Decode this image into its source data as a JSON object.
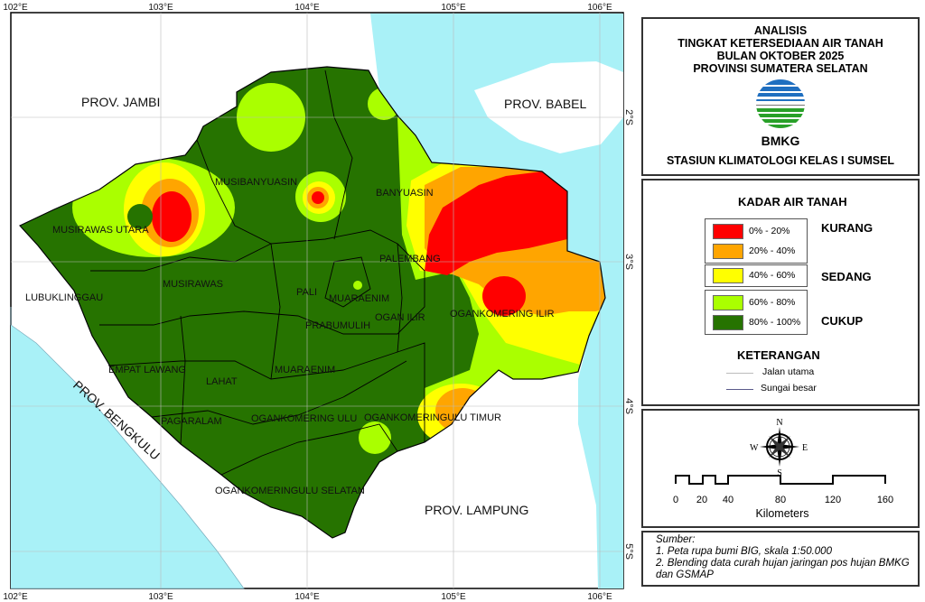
{
  "title": {
    "lines": [
      "ANALISIS",
      "TINGKAT KETERSEDIAAN AIR TANAH",
      "BULAN OKTOBER 2025",
      "PROVINSI SUMATERA SELATAN"
    ],
    "logo_text": "BMKG",
    "station": "STASIUN KLIMATOLOGI KELAS I SUMSEL"
  },
  "legend": {
    "title": "KADAR AIR TANAH",
    "ranges": [
      {
        "label": "0% - 20%",
        "color": "#ff0000"
      },
      {
        "label": "20% - 40%",
        "color": "#ffa500"
      },
      {
        "label": "40% - 60%",
        "color": "#ffff00"
      },
      {
        "label": "60% - 80%",
        "color": "#aaff00"
      },
      {
        "label": "80% - 100%",
        "color": "#267300"
      }
    ],
    "classes": [
      "KURANG",
      "SEDANG",
      "CUKUP"
    ],
    "keterangan_title": "KETERANGAN",
    "lines": [
      {
        "label": "Jalan utama",
        "color": "#bbbbbb"
      },
      {
        "label": "Sungai besar",
        "color": "#5a5a8a"
      }
    ]
  },
  "compass": {
    "n": "N",
    "s": "S",
    "e": "E",
    "w": "W"
  },
  "scale": {
    "ticks": [
      "0",
      "20",
      "40",
      "80",
      "120",
      "160"
    ],
    "unit": "Kilometers"
  },
  "source": {
    "heading": "Sumber:",
    "items": [
      "1. Peta rupa bumi BIG, skala 1:50.000",
      "2. Blending data curah hujan jaringan pos hujan BMKG",
      "dan GSMAP"
    ]
  },
  "map": {
    "lon_ticks": [
      "102°E",
      "103°E",
      "104°E",
      "105°E",
      "106°E"
    ],
    "lat_ticks": [
      "2°S",
      "3°S",
      "4°S",
      "5°S"
    ],
    "provinces": [
      "PROV. JAMBI",
      "PROV. BABEL",
      "PROV. BENGKULU",
      "PROV. LAMPUNG"
    ],
    "regencies": [
      "MUSIRAWAS UTARA",
      "MUSIBANYUASIN",
      "BANYUASIN",
      "PALEMBANG",
      "MUSIRAWAS",
      "LUBUKLINGGAU",
      "PALI",
      "MUARAENIM",
      "PRABUMULIH",
      "OGAN ILIR",
      "OGANKOMERING ILIR",
      "EMPAT LAWANG",
      "LAHAT",
      "MUARAENIM",
      "PAGARALAM",
      "OGANKOMERING ULU",
      "OGANKOMERINGULU TIMUR",
      "OGANKOMERINGULU SELATAN"
    ],
    "colors": {
      "sea": "#a9f1f7",
      "land_other": "#ffffff",
      "boundary": "#000000"
    }
  }
}
